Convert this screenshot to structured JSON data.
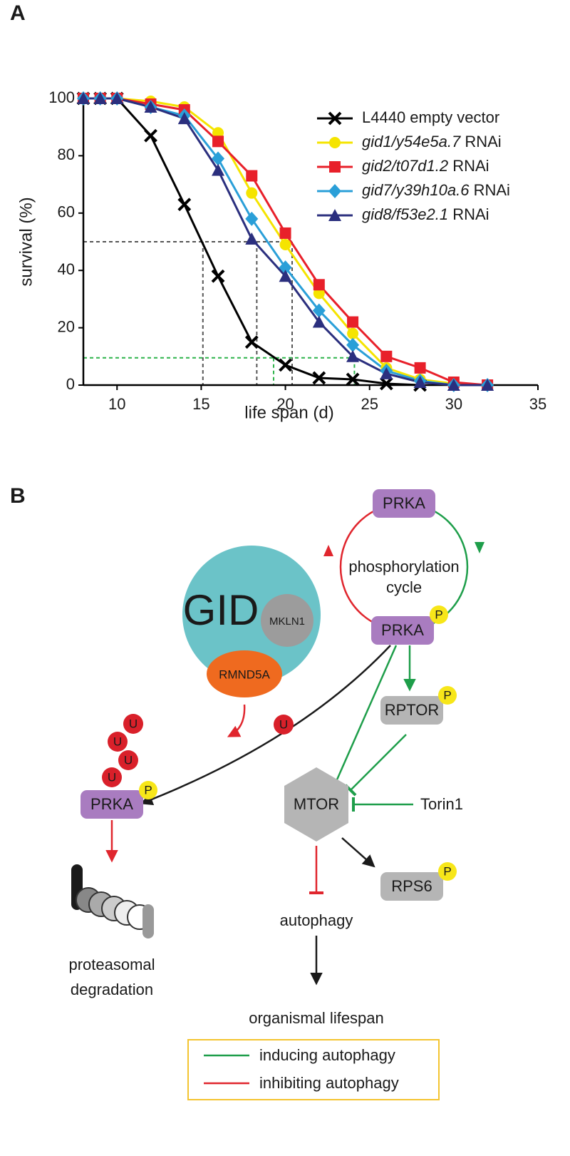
{
  "chart_data": {
    "type": "line",
    "panel_label": "A",
    "xlabel": "life span (d)",
    "ylabel": "survival (%)",
    "x": [
      8,
      9,
      10,
      12,
      14,
      16,
      18,
      20,
      22,
      24,
      26,
      28,
      30,
      32
    ],
    "xlim": [
      8,
      35
    ],
    "xticks": [
      10,
      15,
      20,
      25,
      30,
      35
    ],
    "ylim": [
      0,
      100
    ],
    "yticks": [
      0,
      20,
      40,
      60,
      80,
      100
    ],
    "series": [
      {
        "name": "L4440 empty vector",
        "color": "#000000",
        "marker": "x",
        "values": [
          100,
          100,
          100,
          87,
          63,
          38,
          15,
          7,
          2.5,
          2,
          0.5,
          0,
          null,
          null
        ]
      },
      {
        "name": "gid1/y54e5a.7 RNAi",
        "color": "#f5e400",
        "marker": "circle",
        "values": [
          100,
          100,
          100,
          99,
          97,
          88,
          67,
          49,
          32,
          18,
          6,
          2,
          0.5,
          0
        ]
      },
      {
        "name": "gid2/t07d1.2 RNAi",
        "color": "#e8202a",
        "marker": "square",
        "values": [
          100,
          100,
          100,
          98,
          96,
          85,
          73,
          53,
          35,
          22,
          10,
          6,
          1,
          0
        ]
      },
      {
        "name": "gid7/y39h10a.6 RNAi",
        "color": "#2a9fd8",
        "marker": "diamond",
        "values": [
          100,
          100,
          100,
          97,
          94,
          79,
          58,
          41,
          26,
          14,
          5,
          1.5,
          0,
          0
        ]
      },
      {
        "name": "gid8/f53e2.1 RNAi",
        "color": "#2b2f7e",
        "marker": "triangle",
        "values": [
          100,
          100,
          100,
          97,
          93,
          75,
          51,
          38,
          22,
          10,
          4,
          1,
          0,
          0
        ]
      }
    ],
    "reference_lines": [
      {
        "color": "#555555",
        "y": 50,
        "x": [
          15.1,
          18.3,
          20.4
        ]
      },
      {
        "color": "#2db34a",
        "y": 9.5,
        "x": [
          19.3,
          24.1
        ]
      }
    ]
  },
  "diagram": {
    "panel_label": "B",
    "labels": [
      "PRKA",
      "PRKA",
      "PRKA",
      "phosphorylation",
      "cycle",
      "GID",
      "MKLN1",
      "RMND5A",
      "RPTOR",
      "MTOR",
      "Torin1",
      "RPS6",
      "autophagy",
      "organismal lifespan",
      "proteasomal",
      "degradation"
    ],
    "phospho": [
      "P",
      "P",
      "P",
      "P"
    ],
    "ubiquitin": [
      "U",
      "U",
      "U",
      "U",
      "U"
    ],
    "legend": [
      "inducing autophagy",
      "inhibiting autophagy"
    ]
  }
}
